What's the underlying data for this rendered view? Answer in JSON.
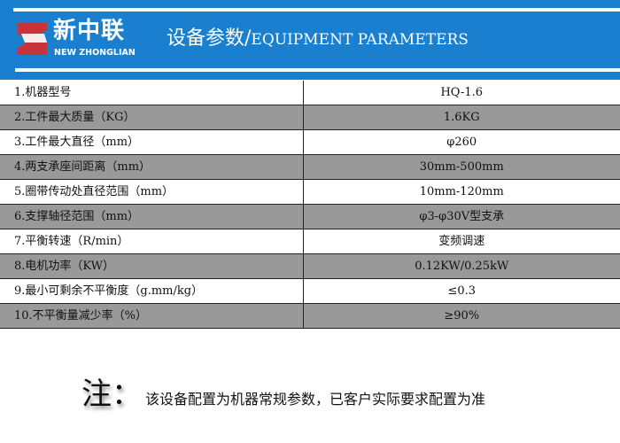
{
  "header": {
    "brand_cn": "新中联",
    "brand_en": "NEW ZHONGLIAN",
    "title_cn": "设备参数/",
    "title_en": "EQUIPMENT PARAMETERS",
    "logo_color": "#c8323a",
    "bg": "#1a7fcf"
  },
  "rows": [
    {
      "label": "1.机器型号",
      "value": "HQ-1.6"
    },
    {
      "label": "2.工件最大质量（KG）",
      "value": "1.6KG"
    },
    {
      "label": "3.工件最大直径（mm）",
      "value": "φ260"
    },
    {
      "label": "4.两支承座间距离（mm）",
      "value": "30mm-500mm"
    },
    {
      "label": "5.圈带传动处直径范围（mm）",
      "value": "10mm-120mm"
    },
    {
      "label": "6.支撑轴径范围（mm）",
      "value": "φ3-φ30V型支承"
    },
    {
      "label": "7.平衡转速（R/min）",
      "value": "变频调速"
    },
    {
      "label": "8.电机功率（KW）",
      "value": "0.12KW/0.25kW"
    },
    {
      "label": "9.最小可剩余不平衡度（g.mm/kg）",
      "value": "≤0.3"
    },
    {
      "label": "10.不平衡量减少率（%）",
      "value": "≥90%"
    }
  ],
  "note": {
    "prefix": "注：",
    "text": "该设备配置为机器常规参数，已客户实际要求配置为准"
  }
}
